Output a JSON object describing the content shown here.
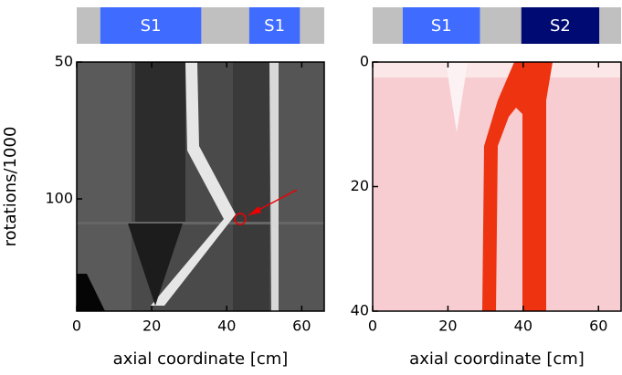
{
  "chart_data": [
    {
      "type": "image",
      "xlabel": "axial coordinate [cm]",
      "ylabel": "rotations/1000",
      "xlim": [
        0,
        66
      ],
      "ylim": [
        141,
        50
      ],
      "xticks": [
        0,
        20,
        40,
        60
      ],
      "yticks": [
        50,
        100
      ],
      "bar_color": "#c0c0c0",
      "segments": [
        {
          "label": "S1",
          "start": 6.3,
          "end": 33.2,
          "color": "#3f6bff"
        },
        {
          "label": "S1",
          "start": 46,
          "end": 59.5,
          "color": "#3f6bff"
        }
      ]
    },
    {
      "type": "image",
      "xlabel": "axial coordinate [cm]",
      "xlim": [
        0,
        66
      ],
      "ylim": [
        40,
        0
      ],
      "xticks": [
        0,
        20,
        40,
        60
      ],
      "yticks": [
        0,
        20,
        40
      ],
      "bar_color": "#c0c0c0",
      "segments": [
        {
          "label": "S1",
          "start": 8,
          "end": 28.5,
          "color": "#3f6bff"
        },
        {
          "label": "S2",
          "start": 39.5,
          "end": 60.2,
          "color": "#000a73"
        }
      ]
    }
  ]
}
